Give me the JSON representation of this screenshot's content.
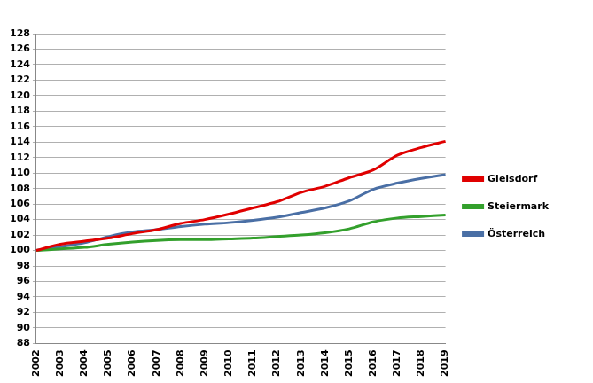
{
  "chart_data": {
    "type": "line",
    "categories": [
      "2002",
      "2003",
      "2004",
      "2005",
      "2006",
      "2007",
      "2008",
      "2009",
      "2010",
      "2011",
      "2012",
      "2013",
      "2014",
      "2015",
      "2016",
      "2017",
      "2018",
      "2019"
    ],
    "series": [
      {
        "name": "Gleisdorf",
        "color": "#e00000",
        "values": [
          100,
          100.8,
          101.2,
          101.6,
          102.2,
          102.7,
          103.5,
          104.0,
          104.7,
          105.5,
          106.3,
          107.5,
          108.3,
          109.4,
          110.4,
          112.3,
          113.3,
          114.1
        ]
      },
      {
        "name": "Steiermark",
        "color": "#33a02c",
        "values": [
          100,
          100.2,
          100.4,
          100.8,
          101.1,
          101.3,
          101.4,
          101.4,
          101.5,
          101.6,
          101.8,
          102.0,
          102.3,
          102.8,
          103.7,
          104.2,
          104.4,
          104.6
        ]
      },
      {
        "name": "Österreich",
        "color": "#4a6fa5",
        "values": [
          100,
          100.5,
          101.0,
          101.8,
          102.4,
          102.7,
          103.1,
          103.4,
          103.6,
          103.9,
          104.3,
          104.9,
          105.5,
          106.4,
          107.9,
          108.7,
          109.3,
          109.8
        ]
      }
    ],
    "ylim": [
      88,
      128
    ],
    "yticks": [
      88,
      90,
      92,
      94,
      96,
      98,
      100,
      102,
      104,
      106,
      108,
      110,
      112,
      114,
      116,
      118,
      120,
      122,
      124,
      126,
      128
    ],
    "grid": true,
    "legend": "right"
  }
}
